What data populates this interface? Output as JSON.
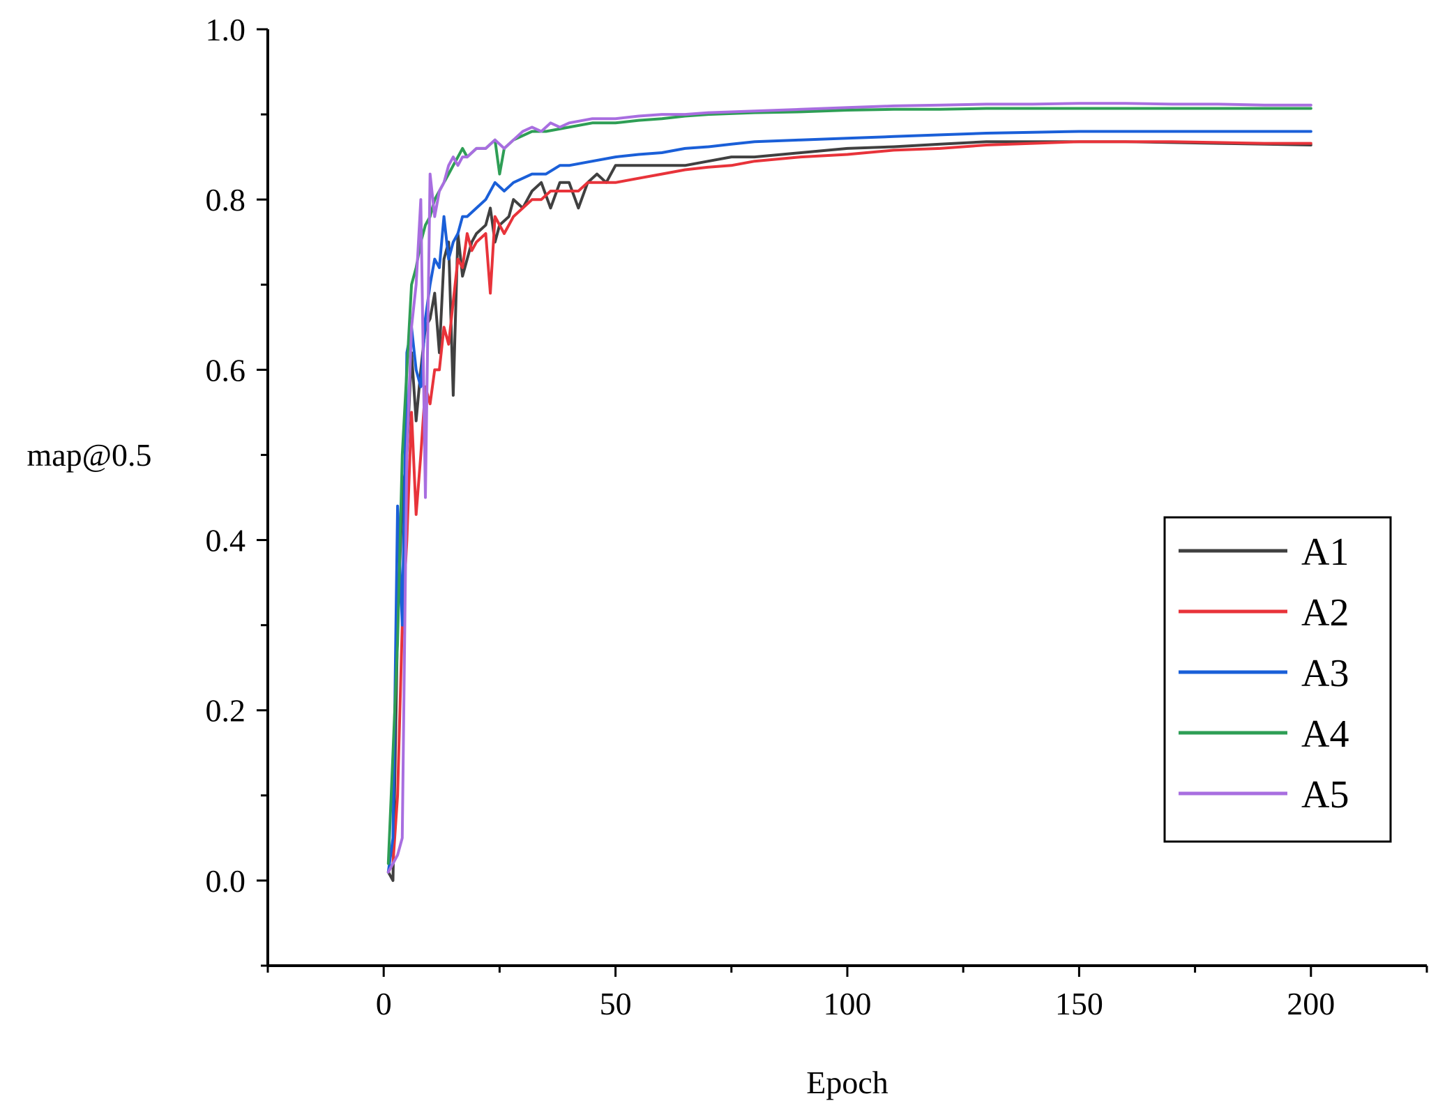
{
  "chart_data": {
    "type": "line",
    "title": "",
    "xlabel": "Epoch",
    "ylabel": "map@0.5",
    "xlim": [
      -25,
      225
    ],
    "ylim": [
      -0.1,
      1.0
    ],
    "x_ticks": [
      0,
      50,
      100,
      150,
      200
    ],
    "x_tick_labels": [
      "0",
      "50",
      "100",
      "150",
      "200"
    ],
    "y_ticks": [
      0.0,
      0.2,
      0.4,
      0.6,
      0.8,
      1.0
    ],
    "y_tick_labels": [
      "0.0",
      "0.2",
      "0.4",
      "0.6",
      "0.8",
      "1.0"
    ],
    "grid": false,
    "legend_position": "right",
    "series": [
      {
        "name": "A1",
        "color": "#404040",
        "points": [
          [
            1,
            0.01
          ],
          [
            2,
            0.0
          ],
          [
            3,
            0.3
          ],
          [
            4,
            0.45
          ],
          [
            5,
            0.5
          ],
          [
            6,
            0.62
          ],
          [
            7,
            0.54
          ],
          [
            8,
            0.6
          ],
          [
            9,
            0.65
          ],
          [
            10,
            0.66
          ],
          [
            11,
            0.69
          ],
          [
            12,
            0.62
          ],
          [
            13,
            0.73
          ],
          [
            14,
            0.75
          ],
          [
            15,
            0.57
          ],
          [
            16,
            0.76
          ],
          [
            17,
            0.71
          ],
          [
            18,
            0.73
          ],
          [
            19,
            0.75
          ],
          [
            20,
            0.76
          ],
          [
            22,
            0.77
          ],
          [
            23,
            0.79
          ],
          [
            24,
            0.75
          ],
          [
            25,
            0.77
          ],
          [
            27,
            0.78
          ],
          [
            28,
            0.8
          ],
          [
            30,
            0.79
          ],
          [
            32,
            0.81
          ],
          [
            34,
            0.82
          ],
          [
            36,
            0.79
          ],
          [
            38,
            0.82
          ],
          [
            40,
            0.82
          ],
          [
            42,
            0.79
          ],
          [
            44,
            0.82
          ],
          [
            46,
            0.83
          ],
          [
            48,
            0.82
          ],
          [
            50,
            0.84
          ],
          [
            55,
            0.84
          ],
          [
            60,
            0.84
          ],
          [
            65,
            0.84
          ],
          [
            70,
            0.845
          ],
          [
            75,
            0.85
          ],
          [
            80,
            0.85
          ],
          [
            90,
            0.855
          ],
          [
            100,
            0.86
          ],
          [
            110,
            0.862
          ],
          [
            120,
            0.865
          ],
          [
            130,
            0.868
          ],
          [
            140,
            0.868
          ],
          [
            150,
            0.868
          ],
          [
            160,
            0.868
          ],
          [
            170,
            0.867
          ],
          [
            180,
            0.866
          ],
          [
            190,
            0.865
          ],
          [
            200,
            0.864
          ]
        ]
      },
      {
        "name": "A2",
        "color": "#e8333a",
        "points": [
          [
            1,
            0.01
          ],
          [
            2,
            0.02
          ],
          [
            3,
            0.1
          ],
          [
            4,
            0.3
          ],
          [
            5,
            0.4
          ],
          [
            6,
            0.55
          ],
          [
            7,
            0.43
          ],
          [
            8,
            0.5
          ],
          [
            9,
            0.58
          ],
          [
            10,
            0.56
          ],
          [
            11,
            0.6
          ],
          [
            12,
            0.6
          ],
          [
            13,
            0.65
          ],
          [
            14,
            0.63
          ],
          [
            15,
            0.68
          ],
          [
            16,
            0.73
          ],
          [
            17,
            0.72
          ],
          [
            18,
            0.76
          ],
          [
            19,
            0.74
          ],
          [
            20,
            0.75
          ],
          [
            22,
            0.76
          ],
          [
            23,
            0.69
          ],
          [
            24,
            0.78
          ],
          [
            26,
            0.76
          ],
          [
            28,
            0.78
          ],
          [
            30,
            0.79
          ],
          [
            32,
            0.8
          ],
          [
            34,
            0.8
          ],
          [
            36,
            0.81
          ],
          [
            38,
            0.81
          ],
          [
            40,
            0.81
          ],
          [
            42,
            0.81
          ],
          [
            44,
            0.82
          ],
          [
            46,
            0.82
          ],
          [
            48,
            0.82
          ],
          [
            50,
            0.82
          ],
          [
            55,
            0.825
          ],
          [
            60,
            0.83
          ],
          [
            65,
            0.835
          ],
          [
            70,
            0.838
          ],
          [
            75,
            0.84
          ],
          [
            80,
            0.845
          ],
          [
            90,
            0.85
          ],
          [
            100,
            0.853
          ],
          [
            110,
            0.858
          ],
          [
            120,
            0.86
          ],
          [
            130,
            0.864
          ],
          [
            140,
            0.866
          ],
          [
            150,
            0.868
          ],
          [
            160,
            0.868
          ],
          [
            170,
            0.868
          ],
          [
            180,
            0.867
          ],
          [
            190,
            0.866
          ],
          [
            200,
            0.866
          ]
        ]
      },
      {
        "name": "A3",
        "color": "#1a5fd8",
        "points": [
          [
            1,
            0.01
          ],
          [
            2,
            0.05
          ],
          [
            3,
            0.44
          ],
          [
            4,
            0.3
          ],
          [
            5,
            0.62
          ],
          [
            6,
            0.65
          ],
          [
            7,
            0.6
          ],
          [
            8,
            0.58
          ],
          [
            9,
            0.66
          ],
          [
            10,
            0.7
          ],
          [
            11,
            0.73
          ],
          [
            12,
            0.72
          ],
          [
            13,
            0.78
          ],
          [
            14,
            0.73
          ],
          [
            15,
            0.75
          ],
          [
            16,
            0.76
          ],
          [
            17,
            0.78
          ],
          [
            18,
            0.78
          ],
          [
            20,
            0.79
          ],
          [
            22,
            0.8
          ],
          [
            24,
            0.82
          ],
          [
            26,
            0.81
          ],
          [
            28,
            0.82
          ],
          [
            30,
            0.825
          ],
          [
            32,
            0.83
          ],
          [
            35,
            0.83
          ],
          [
            38,
            0.84
          ],
          [
            40,
            0.84
          ],
          [
            45,
            0.845
          ],
          [
            50,
            0.85
          ],
          [
            55,
            0.853
          ],
          [
            60,
            0.855
          ],
          [
            65,
            0.86
          ],
          [
            70,
            0.862
          ],
          [
            75,
            0.865
          ],
          [
            80,
            0.868
          ],
          [
            90,
            0.87
          ],
          [
            100,
            0.872
          ],
          [
            110,
            0.874
          ],
          [
            120,
            0.876
          ],
          [
            130,
            0.878
          ],
          [
            140,
            0.879
          ],
          [
            150,
            0.88
          ],
          [
            160,
            0.88
          ],
          [
            170,
            0.88
          ],
          [
            180,
            0.88
          ],
          [
            190,
            0.88
          ],
          [
            200,
            0.88
          ]
        ]
      },
      {
        "name": "A4",
        "color": "#2e9e55",
        "points": [
          [
            1,
            0.02
          ],
          [
            2,
            0.15
          ],
          [
            3,
            0.28
          ],
          [
            4,
            0.5
          ],
          [
            5,
            0.6
          ],
          [
            6,
            0.7
          ],
          [
            7,
            0.72
          ],
          [
            8,
            0.75
          ],
          [
            9,
            0.77
          ],
          [
            10,
            0.78
          ],
          [
            11,
            0.8
          ],
          [
            12,
            0.81
          ],
          [
            13,
            0.82
          ],
          [
            14,
            0.83
          ],
          [
            15,
            0.84
          ],
          [
            16,
            0.85
          ],
          [
            17,
            0.86
          ],
          [
            18,
            0.85
          ],
          [
            20,
            0.86
          ],
          [
            22,
            0.86
          ],
          [
            24,
            0.87
          ],
          [
            25,
            0.83
          ],
          [
            26,
            0.86
          ],
          [
            28,
            0.87
          ],
          [
            30,
            0.875
          ],
          [
            32,
            0.88
          ],
          [
            35,
            0.88
          ],
          [
            40,
            0.885
          ],
          [
            45,
            0.89
          ],
          [
            50,
            0.89
          ],
          [
            55,
            0.893
          ],
          [
            60,
            0.895
          ],
          [
            65,
            0.898
          ],
          [
            70,
            0.9
          ],
          [
            80,
            0.902
          ],
          [
            90,
            0.903
          ],
          [
            100,
            0.905
          ],
          [
            110,
            0.906
          ],
          [
            120,
            0.906
          ],
          [
            130,
            0.907
          ],
          [
            140,
            0.907
          ],
          [
            150,
            0.907
          ],
          [
            160,
            0.907
          ],
          [
            170,
            0.907
          ],
          [
            180,
            0.907
          ],
          [
            190,
            0.907
          ],
          [
            200,
            0.907
          ]
        ]
      },
      {
        "name": "A5",
        "color": "#a86ee0",
        "points": [
          [
            1,
            0.01
          ],
          [
            2,
            0.02
          ],
          [
            3,
            0.03
          ],
          [
            4,
            0.05
          ],
          [
            5,
            0.5
          ],
          [
            6,
            0.65
          ],
          [
            7,
            0.7
          ],
          [
            8,
            0.8
          ],
          [
            9,
            0.45
          ],
          [
            10,
            0.83
          ],
          [
            11,
            0.78
          ],
          [
            12,
            0.81
          ],
          [
            13,
            0.82
          ],
          [
            14,
            0.84
          ],
          [
            15,
            0.85
          ],
          [
            16,
            0.84
          ],
          [
            17,
            0.85
          ],
          [
            18,
            0.85
          ],
          [
            20,
            0.86
          ],
          [
            22,
            0.86
          ],
          [
            24,
            0.87
          ],
          [
            26,
            0.86
          ],
          [
            28,
            0.87
          ],
          [
            30,
            0.88
          ],
          [
            32,
            0.885
          ],
          [
            34,
            0.88
          ],
          [
            36,
            0.89
          ],
          [
            38,
            0.885
          ],
          [
            40,
            0.89
          ],
          [
            45,
            0.895
          ],
          [
            50,
            0.895
          ],
          [
            55,
            0.898
          ],
          [
            60,
            0.9
          ],
          [
            65,
            0.9
          ],
          [
            70,
            0.902
          ],
          [
            80,
            0.904
          ],
          [
            90,
            0.906
          ],
          [
            100,
            0.908
          ],
          [
            110,
            0.91
          ],
          [
            120,
            0.911
          ],
          [
            130,
            0.912
          ],
          [
            140,
            0.912
          ],
          [
            150,
            0.913
          ],
          [
            160,
            0.913
          ],
          [
            170,
            0.912
          ],
          [
            180,
            0.912
          ],
          [
            190,
            0.911
          ],
          [
            200,
            0.911
          ]
        ]
      }
    ]
  }
}
